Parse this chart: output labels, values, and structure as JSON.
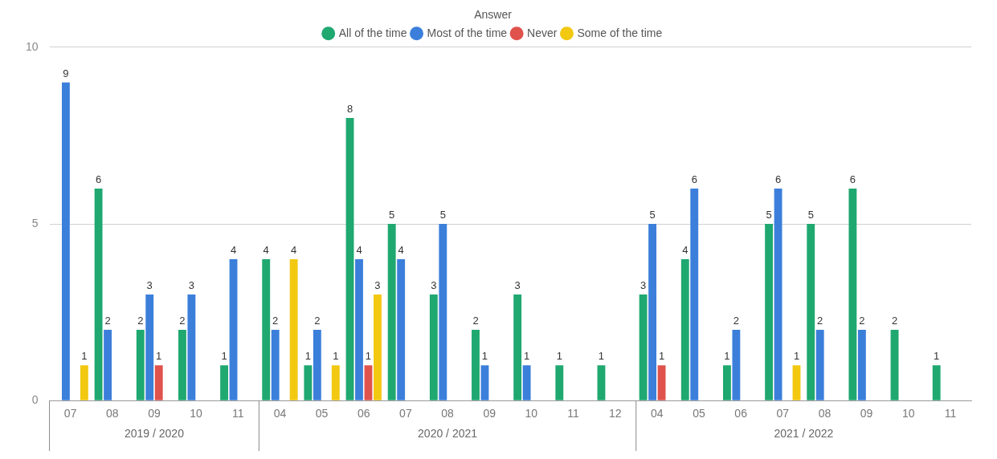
{
  "chart_data": {
    "type": "bar",
    "legend_title": "Answer",
    "categories": [
      "07",
      "08",
      "09",
      "10",
      "11",
      "04",
      "05",
      "06",
      "07",
      "08",
      "09",
      "10",
      "11",
      "12",
      "04",
      "05",
      "06",
      "07",
      "08",
      "09",
      "10",
      "11"
    ],
    "series": [
      {
        "name": "All of the time",
        "color": "#1fa870",
        "values": [
          null,
          6,
          2,
          2,
          1,
          4,
          1,
          8,
          5,
          3,
          2,
          3,
          1,
          1,
          3,
          4,
          1,
          5,
          5,
          6,
          2,
          1
        ]
      },
      {
        "name": "Most of the time",
        "color": "#3b7fdb",
        "values": [
          9,
          2,
          3,
          3,
          4,
          2,
          2,
          4,
          4,
          5,
          1,
          1,
          null,
          null,
          5,
          6,
          2,
          6,
          2,
          2,
          null,
          null
        ]
      },
      {
        "name": "Never",
        "color": "#e0524c",
        "values": [
          null,
          null,
          1,
          null,
          null,
          null,
          null,
          1,
          null,
          null,
          null,
          null,
          null,
          null,
          1,
          null,
          null,
          null,
          null,
          null,
          null,
          null
        ]
      },
      {
        "name": "Some of the time",
        "color": "#f2c811",
        "values": [
          1,
          null,
          null,
          null,
          null,
          4,
          1,
          3,
          null,
          null,
          null,
          null,
          null,
          null,
          null,
          null,
          null,
          1,
          null,
          null,
          null,
          null
        ]
      }
    ],
    "annotations": [
      "2019 / 2020",
      "2020 / 2021",
      "2021 / 2022"
    ],
    "ylim": [
      0,
      10
    ],
    "yticks": [
      0,
      5,
      10
    ],
    "grid": "y",
    "legend": "top",
    "data_labels": true
  }
}
